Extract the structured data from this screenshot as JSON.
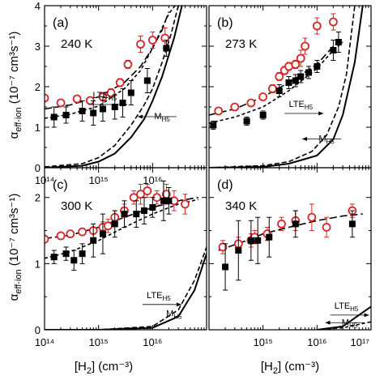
{
  "figure": {
    "ylabel_main": "α",
    "ylabel_sub": "eff-ion",
    "ylabel_units": "(10⁻⁷ cm³s⁻¹)",
    "xlabel_main": "[H",
    "xlabel_sub": "2",
    "xlabel_units": "] (cm⁻³)"
  },
  "chart_data": [
    {
      "type": "scatter",
      "panel": "(a)",
      "temperature": "240 K",
      "xscale": "log",
      "xlim": [
        100000000000000.0,
        1e+17
      ],
      "ylim": [
        0,
        4
      ],
      "yticks": [
        0,
        1,
        2,
        3,
        4
      ],
      "xticks_labels": [
        "10¹⁴",
        "10¹⁵",
        "10¹⁶"
      ],
      "annotations": [
        {
          "text": "LTE",
          "sub": "H5",
          "x": 1300000000000000.0,
          "y": 1.72,
          "arrow": "right"
        },
        {
          "text": "M",
          "sub": "H5",
          "x": 1.5e+16,
          "y": 1.2,
          "arrow": "left"
        }
      ],
      "series": [
        {
          "marker": "circle-open",
          "color": "#d62728",
          "x": [
            100000000000000.0,
            200000000000000.0,
            400000000000000.0,
            700000000000000.0,
            1200000000000000.0,
            1700000000000000.0,
            2500000000000000.0,
            3500000000000000.0,
            6000000000000000.0,
            1e+16,
            1.7e+16
          ],
          "y": [
            1.72,
            1.6,
            1.7,
            1.66,
            1.75,
            1.85,
            2.1,
            2.55,
            3.05,
            3.15,
            3.2
          ],
          "err": [
            0.05,
            0.05,
            0.05,
            0.08,
            0.1,
            0.1,
            0.1,
            0.1,
            0.2,
            0.2,
            0.25
          ]
        },
        {
          "marker": "square-filled",
          "color": "#000000",
          "x": [
            150000000000000.0,
            250000000000000.0,
            500000000000000.0,
            800000000000000.0,
            1200000000000000.0,
            2000000000000000.0,
            2800000000000000.0,
            4000000000000000.0,
            8000000000000000.0,
            1.8e+16
          ],
          "y": [
            1.25,
            1.3,
            1.4,
            1.35,
            1.45,
            1.5,
            1.6,
            1.85,
            2.15,
            2.95
          ],
          "err": [
            0.25,
            0.2,
            0.25,
            0.3,
            0.3,
            0.3,
            0.35,
            0.3,
            0.3,
            0.2
          ]
        }
      ],
      "curves": [
        {
          "style": "long-dash",
          "x": [
            100000000000000.0,
            300000000000000.0,
            1000000000000000.0,
            3000000000000000.0,
            6000000000000000.0,
            1e+16,
            1.5e+16,
            2e+16
          ],
          "y": [
            1.45,
            1.55,
            1.75,
            2.1,
            2.5,
            2.95,
            3.4,
            3.85
          ]
        },
        {
          "style": "short-dash",
          "x": [
            100000000000000.0,
            300000000000000.0,
            1000000000000000.0,
            3000000000000000.0,
            6000000000000000.0,
            1e+16,
            1.5e+16,
            2e+16,
            2.6e+16
          ],
          "y": [
            1.22,
            1.32,
            1.52,
            1.95,
            2.4,
            2.95,
            3.45,
            3.8,
            4
          ]
        },
        {
          "style": "dash",
          "x": [
            100000000000000.0,
            500000000000000.0,
            1000000000000000.0,
            2000000000000000.0,
            4000000000000000.0,
            7000000000000000.0,
            1e+16,
            1.5e+16,
            2.2e+16,
            3e+16
          ],
          "y": [
            0.02,
            0.1,
            0.25,
            0.55,
            1.05,
            1.55,
            1.95,
            2.6,
            3.3,
            4
          ]
        },
        {
          "style": "solid",
          "x": [
            100000000000000.0,
            500000000000000.0,
            1000000000000000.0,
            2000000000000000.0,
            4000000000000000.0,
            7000000000000000.0,
            1e+16,
            1.5e+16,
            2.5e+16,
            3.5e+16
          ],
          "y": [
            0,
            0.05,
            0.15,
            0.35,
            0.75,
            1.2,
            1.65,
            2.25,
            3.2,
            4
          ]
        }
      ]
    },
    {
      "type": "scatter",
      "panel": "(b)",
      "temperature": "273 K",
      "xscale": "log",
      "xlim": [
        100000000000000.0,
        1e+17
      ],
      "ylim": [
        0,
        4
      ],
      "yticks": [
        0,
        1,
        2,
        3,
        4
      ],
      "annotations": [
        {
          "text": "LTE",
          "sub": "H5",
          "x": 5000000000000000.0,
          "y": 1.5,
          "arrow": "right"
        },
        {
          "text": "M",
          "sub": "H5",
          "x": 1.5e+16,
          "y": 0.65,
          "arrow": "left"
        }
      ],
      "series": [
        {
          "marker": "circle-open",
          "color": "#d62728",
          "x": [
            150000000000000.0,
            300000000000000.0,
            600000000000000.0,
            1000000000000000.0,
            1500000000000000.0,
            2000000000000000.0,
            2500000000000000.0,
            3000000000000000.0,
            4000000000000000.0,
            5000000000000000.0,
            6000000000000000.0,
            1e+16,
            2e+16
          ],
          "y": [
            1.4,
            1.5,
            1.6,
            1.75,
            1.95,
            2.25,
            2.4,
            2.5,
            2.55,
            2.7,
            3.0,
            3.5,
            3.6
          ],
          "err": [
            0.05,
            0.05,
            0.05,
            0.08,
            0.1,
            0.1,
            0.1,
            0.1,
            0.1,
            0.2,
            0.2,
            0.2,
            0.2
          ]
        },
        {
          "marker": "square-filled",
          "color": "#000000",
          "x": [
            120000000000000.0,
            500000000000000.0,
            1000000000000000.0,
            2000000000000000.0,
            3000000000000000.0,
            4000000000000000.0,
            5000000000000000.0,
            7000000000000000.0,
            1e+16,
            2e+16,
            2.5e+16
          ],
          "y": [
            1.05,
            1.15,
            1.3,
            1.9,
            2.1,
            2.15,
            2.25,
            2.35,
            2.5,
            2.9,
            3.1
          ],
          "err": [
            0.1,
            0.1,
            0.1,
            0.15,
            0.15,
            0.15,
            0.15,
            0.15,
            0.15,
            0.25,
            0.25
          ]
        }
      ],
      "curves": [
        {
          "style": "long-dash",
          "x": [
            100000000000000.0,
            300000000000000.0,
            1000000000000000.0,
            3000000000000000.0,
            1e+16,
            2e+16,
            3e+16
          ],
          "y": [
            1.3,
            1.45,
            1.75,
            2.1,
            2.55,
            3.0,
            3.2
          ]
        },
        {
          "style": "short-dash",
          "x": [
            100000000000000.0,
            300000000000000.0,
            1000000000000000.0,
            3000000000000000.0,
            1e+16,
            2e+16,
            3e+16
          ],
          "y": [
            1.1,
            1.25,
            1.5,
            1.9,
            2.45,
            2.9,
            3.1
          ]
        },
        {
          "style": "dash",
          "x": [
            100000000000000.0,
            1000000000000000.0,
            3000000000000000.0,
            8000000000000000.0,
            1.5e+16,
            2.5e+16,
            3.5e+16,
            5e+16
          ],
          "y": [
            0,
            0.05,
            0.15,
            0.4,
            0.8,
            1.5,
            2.3,
            4
          ]
        },
        {
          "style": "solid",
          "x": [
            100000000000000.0,
            1000000000000000.0,
            3000000000000000.0,
            1e+16,
            2e+16,
            3e+16,
            5e+16,
            7e+16
          ],
          "y": [
            0,
            0.02,
            0.1,
            0.3,
            0.7,
            1.3,
            2.6,
            4
          ]
        }
      ]
    },
    {
      "type": "scatter",
      "panel": "(c)",
      "temperature": "300 K",
      "xscale": "log",
      "xlim": [
        100000000000000.0,
        1e+17
      ],
      "ylim": [
        0,
        2.45
      ],
      "yticks": [
        0,
        1,
        2
      ],
      "xticks_labels": [
        "10¹⁴",
        "10¹⁵",
        "10¹⁶"
      ],
      "annotations": [
        {
          "text": "LTE",
          "sub": "H5",
          "x": 1.3e+16,
          "y": 0.48,
          "arrow": "right"
        },
        {
          "text": "M",
          "sub": "H5",
          "x": 2.5e+16,
          "y": 0.2,
          "arrow": "none"
        }
      ],
      "series": [
        {
          "marker": "circle-open",
          "color": "#d62728",
          "x": [
            100000000000000.0,
            200000000000000.0,
            300000000000000.0,
            500000000000000.0,
            800000000000000.0,
            1200000000000000.0,
            1500000000000000.0,
            2000000000000000.0,
            3000000000000000.0,
            4500000000000000.0,
            6000000000000000.0,
            8000000000000000.0,
            1.2e+16,
            1.8e+16,
            2.5e+16,
            4e+16
          ],
          "y": [
            1.37,
            1.42,
            1.45,
            1.48,
            1.5,
            1.55,
            1.57,
            1.7,
            1.8,
            2.0,
            2.05,
            2.1,
            2.0,
            2.05,
            1.95,
            1.9
          ],
          "err": [
            0.05,
            0.05,
            0.05,
            0.05,
            0.05,
            0.08,
            0.1,
            0.1,
            0.1,
            0.1,
            0.15,
            0.1,
            0.1,
            0.15,
            0.15,
            0.15
          ]
        },
        {
          "marker": "square-filled",
          "color": "#000000",
          "x": [
            150000000000000.0,
            250000000000000.0,
            350000000000000.0,
            500000000000000.0,
            800000000000000.0,
            1200000000000000.0,
            2000000000000000.0,
            3000000000000000.0,
            5000000000000000.0,
            7000000000000000.0,
            1e+16,
            1.6e+16,
            2e+16
          ],
          "y": [
            1.1,
            1.15,
            1.05,
            1.15,
            1.35,
            1.45,
            1.6,
            1.75,
            1.75,
            1.8,
            1.85,
            1.95,
            1.95
          ],
          "err": [
            0.1,
            0.1,
            0.15,
            0.15,
            0.25,
            0.3,
            0.2,
            0.2,
            0.2,
            0.2,
            0.15,
            0.3,
            0.2
          ]
        }
      ],
      "curves": [
        {
          "style": "long-dash",
          "x": [
            100000000000000.0,
            300000000000000.0,
            1000000000000000.0,
            3000000000000000.0,
            1e+16,
            3e+16,
            7e+16
          ],
          "y": [
            1.38,
            1.43,
            1.55,
            1.7,
            1.85,
            1.95,
            2.0
          ]
        },
        {
          "style": "short-dash",
          "x": [
            100000000000000.0,
            300000000000000.0,
            1000000000000000.0,
            3000000000000000.0,
            1e+16,
            3e+16,
            7e+16
          ],
          "y": [
            1.08,
            1.18,
            1.35,
            1.55,
            1.75,
            1.9,
            1.97
          ]
        },
        {
          "style": "dash",
          "x": [
            100000000000000.0,
            1000000000000000.0,
            1e+16,
            3e+16,
            6e+16,
            1e+17
          ],
          "y": [
            0,
            0,
            0.05,
            0.3,
            0.75,
            1.25
          ]
        },
        {
          "style": "solid",
          "x": [
            100000000000000.0,
            1000000000000000.0,
            1e+16,
            3e+16,
            6e+16,
            1e+17
          ],
          "y": [
            0,
            0,
            0.03,
            0.2,
            0.6,
            1.15
          ]
        }
      ]
    },
    {
      "type": "scatter",
      "panel": "(d)",
      "temperature": "340 K",
      "xscale": "log",
      "xlim": [
        100000000000000.0,
        1e+17
      ],
      "ylim": [
        0,
        2.45
      ],
      "yticks": [
        0,
        1,
        2
      ],
      "xticks_labels": [
        "10¹⁵",
        "10¹⁶",
        "10¹⁷"
      ],
      "annotations": [
        {
          "text": "LTE",
          "sub": "H5",
          "x": 3.5e+16,
          "y": 0.32,
          "arrow": "right"
        },
        {
          "text": "M",
          "sub": "H5",
          "x": 4e+16,
          "y": 0.07,
          "arrow": "left"
        }
      ],
      "series": [
        {
          "marker": "circle-open",
          "color": "#d62728",
          "x": [
            180000000000000.0,
            350000000000000.0,
            600000000000000.0,
            700000000000000.0,
            1200000000000000.0,
            2200000000000000.0,
            4000000000000000.0,
            8000000000000000.0,
            1.5e+16,
            4.5e+16
          ],
          "y": [
            1.25,
            1.3,
            1.35,
            1.4,
            1.45,
            1.6,
            1.65,
            1.7,
            1.55,
            1.8
          ],
          "err": [
            0.1,
            0.1,
            0.1,
            0.1,
            0.1,
            0.1,
            0.15,
            0.2,
            0.15,
            0.1
          ]
        },
        {
          "marker": "square-filled",
          "color": "#000000",
          "x": [
            200000000000000.0,
            350000000000000.0,
            600000000000000.0,
            800000000000000.0,
            1300000000000000.0,
            4000000000000000.0,
            4.5e+16
          ],
          "y": [
            0.95,
            1.2,
            1.35,
            1.35,
            1.4,
            1.6,
            1.6
          ],
          "err": [
            0.35,
            0.45,
            0.3,
            0.35,
            0.3,
            0.2,
            0.2
          ]
        }
      ],
      "curves": [
        {
          "style": "long-dash",
          "x": [
            150000000000000.0,
            500000000000000.0,
            1000000000000000.0,
            3000000000000000.0,
            1e+16,
            3e+16,
            7e+16
          ],
          "y": [
            1.2,
            1.35,
            1.45,
            1.55,
            1.65,
            1.72,
            1.75
          ]
        },
        {
          "style": "short-dash",
          "x": [
            1e+16,
            3e+16,
            1e+17
          ],
          "y": [
            0,
            0.03,
            0.12
          ]
        },
        {
          "style": "solid",
          "x": [
            1e+16,
            3e+16,
            1e+17
          ],
          "y": [
            0,
            0.05,
            0.35
          ]
        }
      ]
    }
  ]
}
